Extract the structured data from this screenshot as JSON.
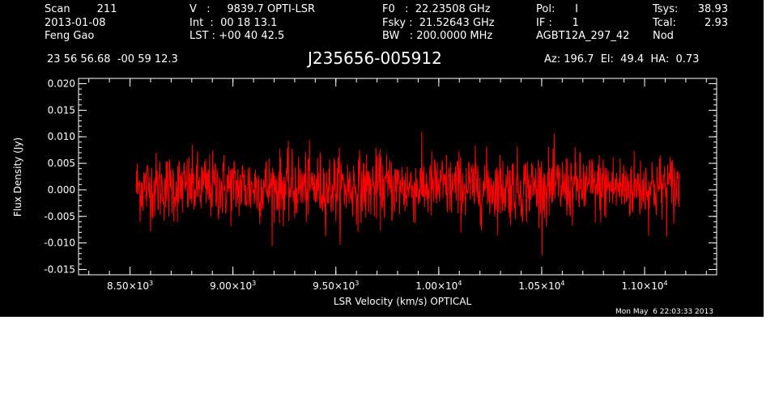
{
  "header": {
    "col1": [
      "Scan        211",
      "2013-01-08",
      "Feng Gao"
    ],
    "col2": [
      "V   :     9839.7 OPTI-LSR",
      "Int  :  00 18 13.1",
      "LST : +00 40 42.5"
    ],
    "col3": [
      "F0   :  22.23508 GHz",
      "Fsky :  21.52643 GHz",
      "BW   : 200.0000 MHz"
    ],
    "col4": [
      "Pol:      I",
      "IF :      1",
      "AGBT12A_297_42"
    ],
    "col5a": [
      "Tsys:",
      "Tcal:",
      "Nod"
    ],
    "col5b": [
      "38.93",
      "2.93",
      ""
    ],
    "coords": "23 56 56.68  -00 59 12.3",
    "source": "J235656-005912",
    "azelha": "Az: 196.7  El:  49.4  HA:  0.73",
    "timestamp": "Mon May  6 22:03:33 2013"
  },
  "chart_data": {
    "type": "line",
    "xlabel": "LSR Velocity (km/s) OPTICAL",
    "ylabel": "Flux Density (Jy)",
    "xlim": [
      8250,
      11350
    ],
    "ylim": [
      -0.016,
      0.021
    ],
    "yticks": [
      -0.015,
      -0.01,
      -0.005,
      0.0,
      0.005,
      0.01,
      0.015,
      0.02
    ],
    "ytick_labels": [
      "-0.015",
      "-0.010",
      "-0.005",
      "0.000",
      "0.005",
      "0.010",
      "0.015",
      "0.020"
    ],
    "xticks": [
      8500,
      9000,
      9500,
      10000,
      10500,
      11000
    ],
    "xtick_labels": [
      {
        "mant": "8.50×10",
        "exp": "3"
      },
      {
        "mant": "9.00×10",
        "exp": "3"
      },
      {
        "mant": "9.50×10",
        "exp": "3"
      },
      {
        "mant": "1.00×10",
        "exp": "4"
      },
      {
        "mant": "1.05×10",
        "exp": "4"
      },
      {
        "mant": "1.10×10",
        "exp": "4"
      }
    ],
    "series": [
      {
        "color": "#ff0000",
        "x_range": [
          8530,
          11170
        ],
        "n_points": 1400,
        "mean": 0.0005,
        "std": 0.0032
      }
    ]
  }
}
